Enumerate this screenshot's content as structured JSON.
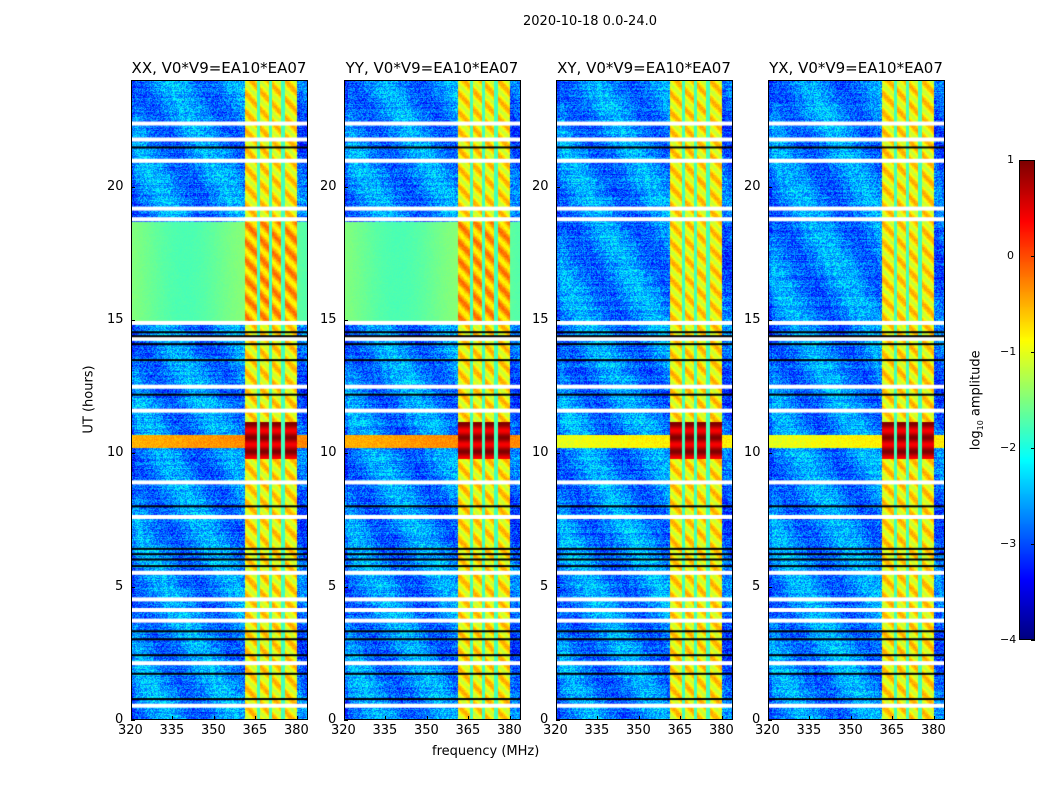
{
  "suptitle": "2020-10-18 0.0-24.0",
  "chart_data": {
    "type": "heatmap",
    "xlabel": "frequency (MHz)",
    "ylabel": "UT (hours)",
    "xlim": [
      320,
      384
    ],
    "ylim": [
      0,
      24
    ],
    "xticks": [
      "320",
      "335",
      "350",
      "365",
      "380"
    ],
    "xtick_values": [
      320,
      335,
      350,
      365,
      380
    ],
    "yticks": [
      "0",
      "5",
      "10",
      "15",
      "20"
    ],
    "ytick_values": [
      0,
      5,
      10,
      15,
      20
    ],
    "panels": [
      {
        "title": "XX, V0*V9=EA10*EA07",
        "green_block": true
      },
      {
        "title": "YY, V0*V9=EA10*EA07",
        "green_block": true
      },
      {
        "title": "XY, V0*V9=EA10*EA07",
        "green_block": false
      },
      {
        "title": "YX, V0*V9=EA10*EA07",
        "green_block": false
      }
    ],
    "background_log_amp": -2.7,
    "rfi_band_mhz": [
      361,
      380
    ],
    "rfi_gap_mhz": [
      366,
      370.5,
      375
    ],
    "rfi_log_amp": -0.8,
    "strong_ut_range": [
      9.8,
      11.2
    ],
    "strong_log_amp": 0.7,
    "green_block_ut": [
      15.0,
      18.7
    ],
    "green_block_log_amp": -1.6,
    "flagged_ut_white": [
      0.5,
      2.1,
      3.7,
      4.1,
      4.5,
      5.5,
      7.6,
      8.9,
      11.6,
      12.5,
      14.3,
      14.9,
      18.8,
      19.2,
      21.0,
      21.8,
      22.4
    ],
    "flagged_ut_black": [
      0.75,
      1.7,
      2.4,
      3.0,
      3.3,
      5.75,
      6.0,
      6.2,
      6.4,
      8.0,
      12.2,
      13.5,
      14.1,
      14.4,
      14.55,
      21.5
    ],
    "colorbar": {
      "label": "log10 amplitude",
      "label_base": "log",
      "label_sub": "10",
      "label_rest": " amplitude",
      "range": [
        -4,
        1
      ],
      "ticks": [
        "1",
        "0",
        "−1",
        "−2",
        "−3",
        "−4"
      ],
      "tick_values": [
        1,
        0,
        -1,
        -2,
        -3,
        -4
      ],
      "colormap": "jet"
    }
  }
}
